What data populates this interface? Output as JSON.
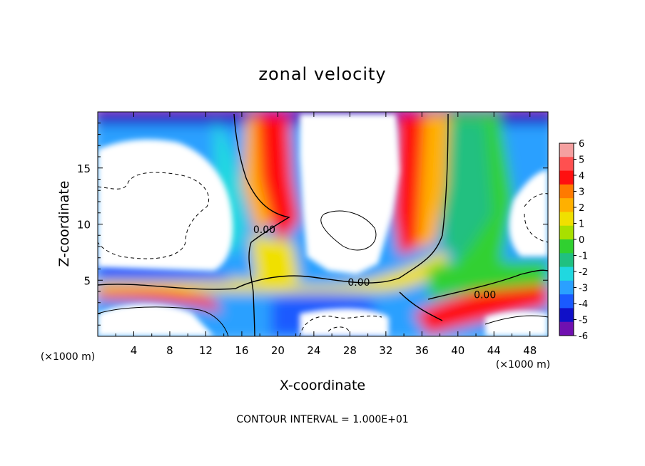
{
  "chart_data": {
    "type": "heatmap",
    "title": "zonal velocity",
    "xlabel": "X-coordinate",
    "ylabel": "Z-coordinate",
    "x_unit": "(×1000 m)",
    "x_unit_right": "(×1000 m)",
    "footer": "CONTOUR INTERVAL = 1.000E+01",
    "xlim": [
      0,
      50
    ],
    "ylim": [
      0,
      20
    ],
    "x_ticks": [
      {
        "value": 4,
        "label": "4"
      },
      {
        "value": 8,
        "label": "8"
      },
      {
        "value": 12,
        "label": "12"
      },
      {
        "value": 16,
        "label": "16"
      },
      {
        "value": 20,
        "label": "20"
      },
      {
        "value": 24,
        "label": "24"
      },
      {
        "value": 28,
        "label": "28"
      },
      {
        "value": 32,
        "label": "32"
      },
      {
        "value": 36,
        "label": "36"
      },
      {
        "value": 40,
        "label": "40"
      },
      {
        "value": 44,
        "label": "44"
      },
      {
        "value": 48,
        "label": "48"
      }
    ],
    "y_ticks": [
      {
        "value": 5,
        "label": "5"
      },
      {
        "value": 10,
        "label": "10"
      },
      {
        "value": 15,
        "label": "15"
      }
    ],
    "colorbar": {
      "min": -6,
      "max": 6,
      "labels": [
        "6",
        "5",
        "4",
        "3",
        "2",
        "1",
        "0",
        "-1",
        "-2",
        "-3",
        "-4",
        "-5",
        "-6"
      ],
      "colors": [
        "#f5a0a0",
        "#ff5050",
        "#ff1010",
        "#ff7a00",
        "#ffb000",
        "#f0e000",
        "#a8e000",
        "#30d030",
        "#20c080",
        "#20d8e0",
        "#2aa0ff",
        "#1a5aff",
        "#1010c8",
        "#7010b0"
      ]
    },
    "contour_labels": [
      {
        "text": "0.00",
        "x": 18.5,
        "z": 9.2
      },
      {
        "text": "0.00",
        "x": 29,
        "z": 4.5
      },
      {
        "text": "0.00",
        "x": 43,
        "z": 3.4
      }
    ],
    "features": [
      {
        "name": "upper-left white region",
        "x": [
          0,
          14
        ],
        "z": [
          7,
          17.5
        ]
      },
      {
        "name": "upper-center white region",
        "x": [
          24,
          33
        ],
        "z": [
          5.5,
          20
        ]
      },
      {
        "name": "right white region",
        "x": [
          45,
          50
        ],
        "z": [
          8,
          15
        ]
      },
      {
        "name": "lower-left white region",
        "x": [
          0,
          13
        ],
        "z": [
          0,
          2.5
        ]
      }
    ]
  }
}
